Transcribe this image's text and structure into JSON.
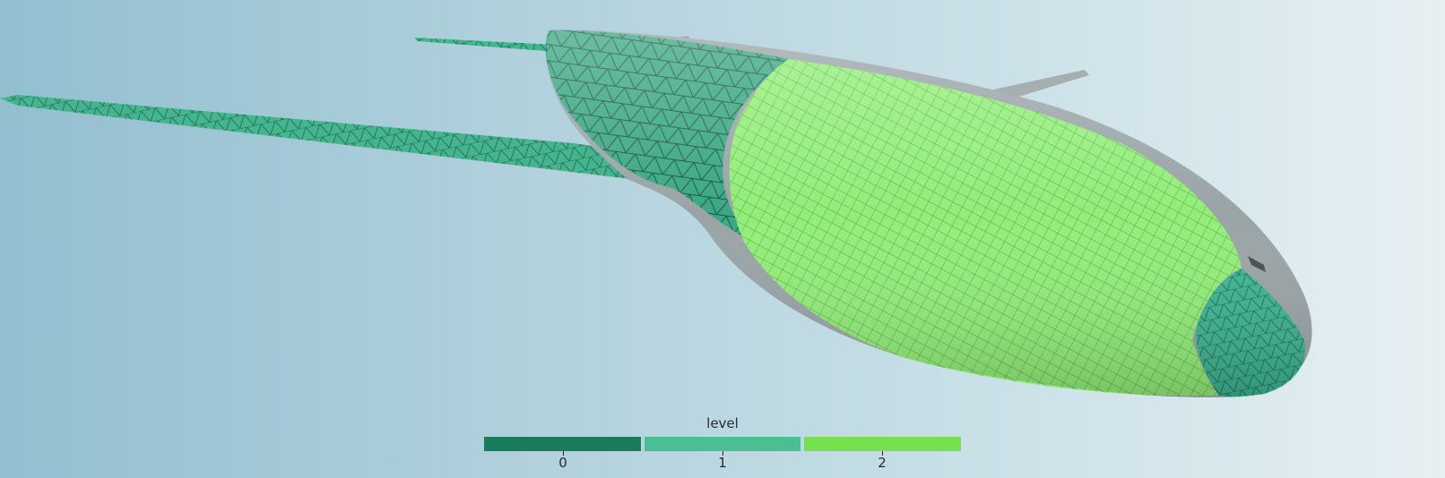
{
  "legend": {
    "title": "level",
    "items": [
      {
        "label": "0",
        "color": "#1a7a5c"
      },
      {
        "label": "1",
        "color": "#4bbf92"
      },
      {
        "label": "2",
        "color": "#76e04f"
      }
    ]
  },
  "colors": {
    "background_left": "#92bfd0",
    "background_right": "#e7f0f3",
    "fuselage_grey": "#9aa4a7",
    "mesh_line": "#1d3b2a"
  }
}
